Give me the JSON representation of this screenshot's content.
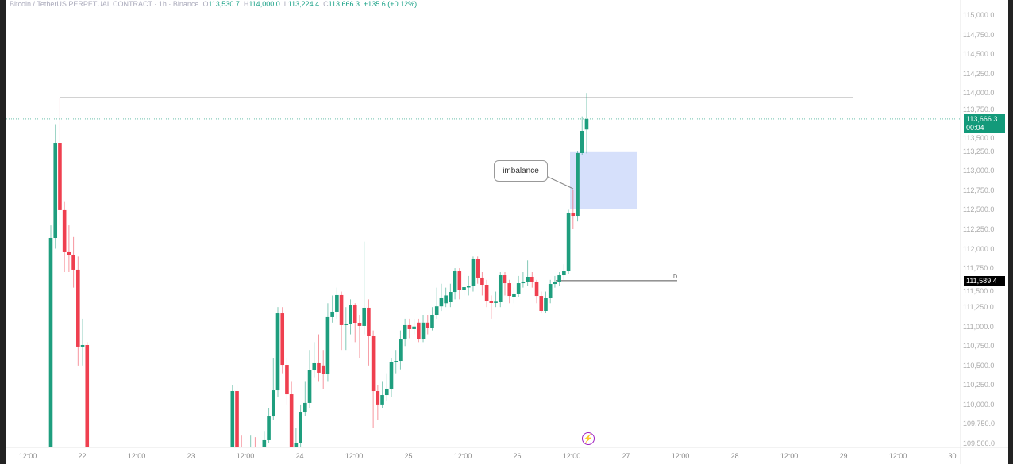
{
  "legend": {
    "symbol": "Bitcoin / TetherUS PERPETUAL CONTRACT · 1h · Binance",
    "open_key": "O",
    "open": "113,530.7",
    "high_key": "H",
    "high": "114,000.0",
    "low_key": "L",
    "low": "113,224.4",
    "close_key": "C",
    "close": "113,666.3",
    "change": "+135.6 (+0.12%)"
  },
  "price_axis": {
    "max": 115000,
    "min": 109500,
    "step": 250,
    "labels": [
      "115,000.0",
      "114,750.0",
      "114,500.0",
      "114,250.0",
      "114,000.0",
      "113,750.0",
      "113,500.0",
      "113,250.0",
      "113,000.0",
      "112,750.0",
      "112,500.0",
      "112,250.0",
      "112,000.0",
      "111,750.0",
      "111,500.0",
      "111,250.0",
      "111,000.0",
      "110,750.0",
      "110,500.0",
      "110,250.0",
      "110,000.0",
      "109,750.0",
      "109,500.0"
    ]
  },
  "current_price": {
    "value": 113666.3,
    "label": "113,666.3",
    "countdown": "00:04",
    "color": "#139a7a"
  },
  "level_tag": {
    "value": 111589.4,
    "label": "111,589.4"
  },
  "time_axis": [
    "12:00",
    "22",
    "12:00",
    "23",
    "12:00",
    "24",
    "12:00",
    "25",
    "12:00",
    "26",
    "12:00",
    "27",
    "12:00",
    "28",
    "12:00",
    "29",
    "12:00",
    "30"
  ],
  "colors": {
    "up": "#1e9e7e",
    "down": "#ef3f4f",
    "zone": "#d6e0fb"
  },
  "drawings": {
    "high_line": 113940,
    "level_line_label": "D",
    "imbalance_zone": {
      "top": 113240,
      "bottom": 112510
    },
    "callout_text": "imbalance"
  },
  "icons": {
    "replay": "lightning-icon"
  },
  "chart_data": {
    "type": "candlestick",
    "fields": [
      "index",
      "open",
      "high",
      "low",
      "close"
    ],
    "candles": [
      [
        0,
        109300,
        112300,
        109200,
        112138
      ],
      [
        1,
        112138,
        113600,
        112000,
        113360
      ],
      [
        2,
        113360,
        113940,
        112300,
        112495
      ],
      [
        3,
        112495,
        112600,
        111700,
        111955
      ],
      [
        4,
        111955,
        112300,
        111700,
        111914
      ],
      [
        5,
        111914,
        112150,
        111500,
        111731
      ],
      [
        6,
        111731,
        111900,
        110500,
        110743
      ],
      [
        7,
        110743,
        111100,
        110500,
        110763
      ],
      [
        8,
        110763,
        110800,
        109200,
        109300
      ],
      [
        40,
        109300,
        110250,
        109200,
        110172
      ],
      [
        41,
        110172,
        110250,
        109200,
        109300
      ],
      [
        42,
        109400,
        109600,
        109300,
        109350
      ],
      [
        44,
        109350,
        109600,
        109300,
        109400
      ],
      [
        45,
        109400,
        109580,
        109300,
        109380
      ],
      [
        47,
        109400,
        109650,
        109350,
        109541
      ],
      [
        48,
        109541,
        109950,
        109500,
        109846
      ],
      [
        49,
        109846,
        110600,
        109800,
        110182
      ],
      [
        50,
        110182,
        111250,
        110100,
        111170
      ],
      [
        51,
        111170,
        111250,
        110400,
        110508
      ],
      [
        52,
        110508,
        110600,
        110000,
        110131
      ],
      [
        53,
        110131,
        110300,
        109400,
        109459
      ],
      [
        54,
        109459,
        109700,
        109400,
        109500
      ],
      [
        55,
        109500,
        110000,
        109450,
        109897
      ],
      [
        56,
        109897,
        110300,
        109850,
        110020
      ],
      [
        57,
        110020,
        110700,
        109950,
        110437
      ],
      [
        58,
        110437,
        110800,
        110350,
        110529
      ],
      [
        59,
        110529,
        110900,
        110300,
        110407
      ],
      [
        60,
        110500,
        110700,
        110200,
        110396
      ],
      [
        61,
        110396,
        111300,
        110300,
        111120
      ],
      [
        62,
        111120,
        111400,
        111050,
        111191
      ],
      [
        63,
        111191,
        111500,
        111100,
        111405
      ],
      [
        64,
        111405,
        111450,
        110700,
        111018
      ],
      [
        65,
        111018,
        111250,
        110700,
        111038
      ],
      [
        66,
        111038,
        111350,
        110900,
        111272
      ],
      [
        67,
        111272,
        111300,
        110800,
        111048
      ],
      [
        68,
        111048,
        111150,
        110600,
        111008
      ],
      [
        69,
        111008,
        112090,
        110900,
        111242
      ],
      [
        70,
        111242,
        111350,
        110500,
        110875
      ],
      [
        71,
        110875,
        110950,
        109700,
        110172
      ],
      [
        72,
        110172,
        110250,
        109800,
        110000
      ],
      [
        73,
        110000,
        110300,
        109950,
        110121
      ],
      [
        74,
        110121,
        110400,
        110050,
        110203
      ],
      [
        75,
        110203,
        110600,
        110100,
        110539
      ],
      [
        76,
        110539,
        110700,
        110400,
        110559
      ],
      [
        77,
        110559,
        110950,
        110450,
        110834
      ],
      [
        78,
        110834,
        111100,
        110750,
        111018
      ],
      [
        79,
        111018,
        111100,
        110850,
        110967
      ],
      [
        80,
        110967,
        111100,
        110900,
        111000
      ],
      [
        81,
        111050,
        111100,
        110800,
        110840
      ],
      [
        82,
        110840,
        111150,
        110800,
        111050
      ],
      [
        83,
        111050,
        111150,
        110900,
        110980
      ],
      [
        84,
        110980,
        111250,
        110950,
        111150
      ],
      [
        85,
        111150,
        111500,
        111100,
        111260
      ],
      [
        86,
        111260,
        111550,
        111200,
        111364
      ],
      [
        87,
        111300,
        111500,
        111250,
        111400
      ],
      [
        88,
        111313,
        111550,
        111250,
        111445
      ],
      [
        89,
        111445,
        111750,
        111350,
        111710
      ],
      [
        90,
        111710,
        111750,
        111350,
        111466
      ],
      [
        91,
        111466,
        111700,
        111400,
        111506
      ],
      [
        92,
        111506,
        111650,
        111400,
        111517
      ],
      [
        93,
        111517,
        111900,
        111450,
        111863
      ],
      [
        94,
        111863,
        111900,
        111550,
        111629
      ],
      [
        95,
        111629,
        111700,
        111400,
        111537
      ],
      [
        96,
        111537,
        111600,
        111250,
        111323
      ],
      [
        97,
        111323,
        111400,
        111100,
        111303
      ],
      [
        98,
        111303,
        111450,
        111250,
        111320
      ],
      [
        99,
        111313,
        111700,
        111250,
        111659
      ],
      [
        100,
        111659,
        111700,
        111400,
        111557
      ],
      [
        101,
        111557,
        111600,
        111300,
        111394
      ],
      [
        102,
        111384,
        111500,
        111300,
        111415
      ],
      [
        103,
        111415,
        111650,
        111380,
        111557
      ],
      [
        104,
        111557,
        111700,
        111500,
        111578
      ],
      [
        105,
        111578,
        111850,
        111520,
        111639
      ],
      [
        106,
        111639,
        111700,
        111500,
        111578
      ],
      [
        107,
        111578,
        111600,
        111300,
        111394
      ],
      [
        108,
        111394,
        111450,
        111180,
        111201
      ],
      [
        109,
        111201,
        111450,
        111180,
        111364
      ],
      [
        110,
        111364,
        111600,
        111300,
        111547
      ],
      [
        111,
        111547,
        111650,
        111500,
        111568
      ],
      [
        112,
        111568,
        111700,
        111520,
        111659
      ],
      [
        113,
        111659,
        111800,
        111600,
        111710
      ],
      [
        114,
        111710,
        112500,
        111680,
        112464
      ],
      [
        115,
        112464,
        112750,
        112250,
        112423
      ],
      [
        116,
        112423,
        113250,
        112350,
        113228
      ],
      [
        117,
        113228,
        113700,
        113200,
        113513
      ],
      [
        118,
        113530.7,
        114000,
        113224.4,
        113666.3
      ]
    ]
  }
}
